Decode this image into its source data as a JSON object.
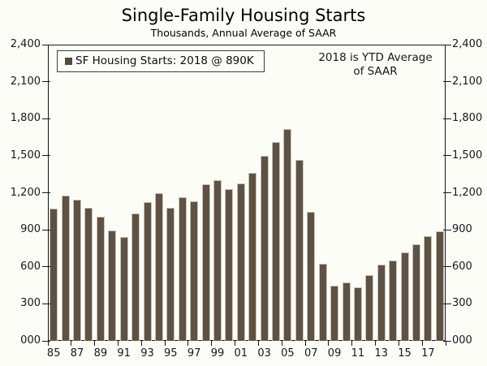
{
  "page": {
    "background_color": "#fdfdf8",
    "text_color": "#16161e"
  },
  "chart_data": {
    "type": "bar",
    "title": "Single-Family Housing Starts",
    "subtitle": "Thousands, Annual Average of SAAR",
    "legend_label": "SF Housing Starts: 2018 @ 890K",
    "annotation_line1": "2018 is YTD Average",
    "annotation_line2": "of SAAR",
    "x": [
      1985,
      1986,
      1987,
      1988,
      1989,
      1990,
      1991,
      1992,
      1993,
      1994,
      1995,
      1996,
      1997,
      1998,
      1999,
      2000,
      2001,
      2002,
      2003,
      2004,
      2005,
      2006,
      2007,
      2008,
      2009,
      2010,
      2011,
      2012,
      2013,
      2014,
      2015,
      2016,
      2017,
      2018
    ],
    "values": [
      1072,
      1179,
      1146,
      1081,
      1003,
      895,
      840,
      1030,
      1126,
      1198,
      1076,
      1161,
      1134,
      1271,
      1302,
      1231,
      1273,
      1359,
      1499,
      1611,
      1716,
      1465,
      1046,
      622,
      445,
      471,
      431,
      535,
      618,
      648,
      715,
      782,
      849,
      890
    ],
    "series_name": "SF Housing Starts",
    "ylim": [
      0,
      2400
    ],
    "ytick_step": 300,
    "ytick_labels": [
      "000",
      "300",
      "600",
      "900",
      "1,200",
      "1,500",
      "1,800",
      "2,100",
      "2,400"
    ],
    "xtick_labels": [
      "85",
      "87",
      "89",
      "91",
      "93",
      "95",
      "97",
      "99",
      "01",
      "03",
      "05",
      "07",
      "09",
      "11",
      "13",
      "15",
      "17"
    ],
    "grid": false,
    "legend_position": "top-left",
    "bar_color": "#5e5245",
    "bar_edge_color": "#c9c3b8",
    "axis_color": "#151515",
    "label_color": "#16161e"
  }
}
